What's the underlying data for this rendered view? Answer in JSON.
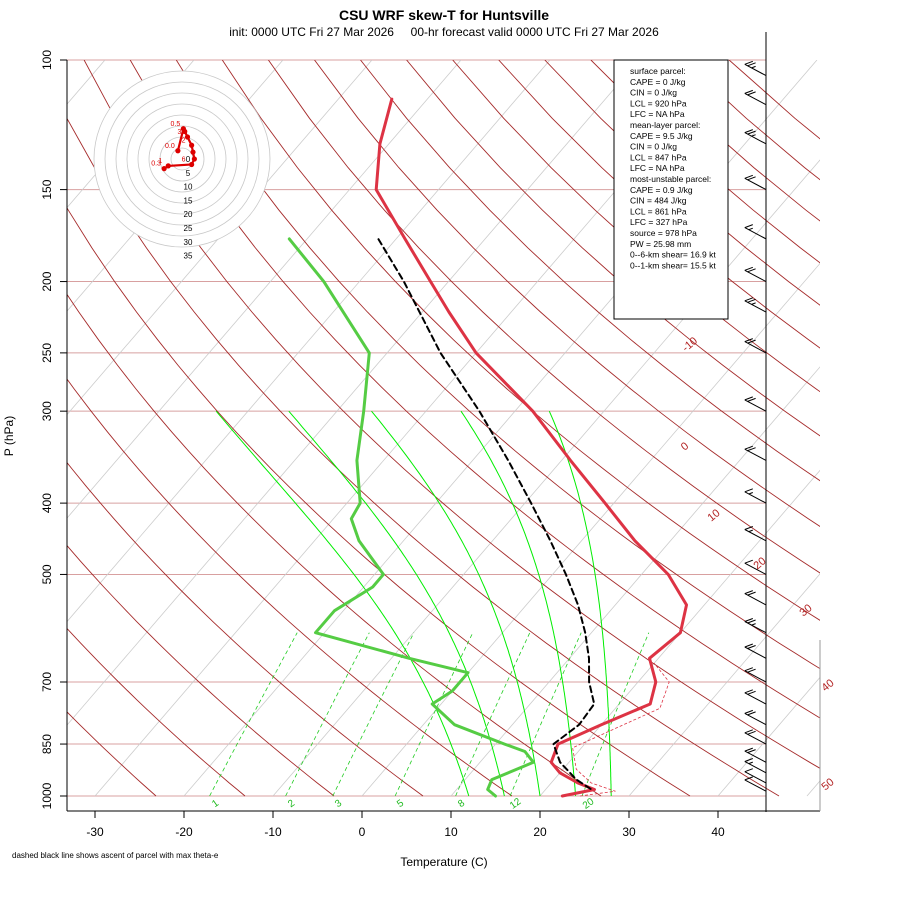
{
  "chart_data": {
    "type": "line",
    "title": "CSU WRF skew-T for Huntsville",
    "subtitle": "init: 0000 UTC Fri 27 Mar 2026     00-hr forecast valid 0000 UTC Fri 27 Mar 2026",
    "xlabel": "Temperature (C)",
    "ylabel": "P (hPa)",
    "x_ticks": [
      -30,
      -20,
      -10,
      0,
      10,
      20,
      30,
      40
    ],
    "y_ticks": [
      100,
      150,
      200,
      250,
      300,
      400,
      500,
      700,
      850,
      1000
    ],
    "ylim": [
      1000,
      100
    ],
    "y_scale": "log",
    "isotherm_labels": [
      "-10",
      "0",
      "10",
      "20",
      "30",
      "40",
      "50"
    ],
    "mixing_ratio_labels": [
      "1",
      "2",
      "3",
      "5",
      "8",
      "12",
      "20"
    ],
    "series": [
      {
        "name": "temperature",
        "color": "#dd3344",
        "points": [
          [
            1000,
            22.5
          ],
          [
            980,
            25.5
          ],
          [
            960,
            23
          ],
          [
            930,
            20
          ],
          [
            900,
            18
          ],
          [
            850,
            17
          ],
          [
            800,
            20
          ],
          [
            750,
            23.5
          ],
          [
            700,
            22
          ],
          [
            650,
            19
          ],
          [
            600,
            20
          ],
          [
            550,
            18
          ],
          [
            500,
            13
          ],
          [
            450,
            6
          ],
          [
            400,
            -1
          ],
          [
            350,
            -9
          ],
          [
            300,
            -18
          ],
          [
            250,
            -30
          ],
          [
            220,
            -37
          ],
          [
            200,
            -42
          ],
          [
            175,
            -49
          ],
          [
            150,
            -57
          ],
          [
            130,
            -61
          ],
          [
            113,
            -64
          ]
        ]
      },
      {
        "name": "dewpoint",
        "color": "#55cc44",
        "points": [
          [
            1000,
            15
          ],
          [
            980,
            13.5
          ],
          [
            950,
            13
          ],
          [
            900,
            16
          ],
          [
            870,
            14
          ],
          [
            850,
            11
          ],
          [
            800,
            3.5
          ],
          [
            750,
            -1
          ],
          [
            720,
            0
          ],
          [
            680,
            0
          ],
          [
            650,
            -8
          ],
          [
            600,
            -21
          ],
          [
            560,
            -21
          ],
          [
            520,
            -19
          ],
          [
            500,
            -19
          ],
          [
            450,
            -25
          ],
          [
            420,
            -28
          ],
          [
            400,
            -28.5
          ],
          [
            350,
            -33
          ],
          [
            300,
            -37
          ],
          [
            250,
            -42
          ],
          [
            200,
            -54
          ],
          [
            175,
            -62
          ]
        ]
      },
      {
        "name": "parcel",
        "color": "#000000",
        "points": [
          [
            978,
            25
          ],
          [
            950,
            22.5
          ],
          [
            900,
            19
          ],
          [
            850,
            16.5
          ],
          [
            800,
            17.5
          ],
          [
            750,
            17.2
          ],
          [
            700,
            14.5
          ],
          [
            650,
            12.2
          ],
          [
            600,
            9.3
          ],
          [
            550,
            5.8
          ],
          [
            500,
            1.5
          ],
          [
            450,
            -3.5
          ],
          [
            400,
            -9.3
          ],
          [
            350,
            -16
          ],
          [
            300,
            -24
          ],
          [
            250,
            -34
          ],
          [
            200,
            -45
          ],
          [
            175,
            -52
          ]
        ]
      }
    ],
    "wind_barbs_kt": [
      {
        "p": 985,
        "spd": 10
      },
      {
        "p": 960,
        "spd": 12
      },
      {
        "p": 930,
        "spd": 15
      },
      {
        "p": 900,
        "spd": 18
      },
      {
        "p": 850,
        "spd": 20
      },
      {
        "p": 800,
        "spd": 22
      },
      {
        "p": 750,
        "spd": 20
      },
      {
        "p": 700,
        "spd": 18
      },
      {
        "p": 650,
        "spd": 22
      },
      {
        "p": 600,
        "spd": 25
      },
      {
        "p": 550,
        "spd": 18
      },
      {
        "p": 500,
        "spd": 12
      },
      {
        "p": 450,
        "spd": 15
      },
      {
        "p": 400,
        "spd": 15
      },
      {
        "p": 350,
        "spd": 18
      },
      {
        "p": 300,
        "spd": 20
      },
      {
        "p": 250,
        "spd": 22
      },
      {
        "p": 220,
        "spd": 25
      },
      {
        "p": 200,
        "spd": 20
      },
      {
        "p": 175,
        "spd": 15
      },
      {
        "p": 150,
        "spd": 20
      },
      {
        "p": 130,
        "spd": 25
      },
      {
        "p": 115,
        "spd": 20
      },
      {
        "p": 105,
        "spd": 25
      }
    ],
    "hodograph": {
      "ring_labels": [
        "0",
        "5",
        "10",
        "15",
        "20",
        "25",
        "30",
        "35"
      ],
      "points": [
        {
          "label": "0.3",
          "u": -6.5,
          "v": -3.5
        },
        {
          "label": "1",
          "u": -5,
          "v": -2.5
        },
        {
          "label": "6",
          "u": 3.5,
          "v": -2
        },
        {
          "label": "",
          "u": 4.5,
          "v": 0
        },
        {
          "label": "",
          "u": 4,
          "v": 2.5
        },
        {
          "label": "2",
          "u": 3.5,
          "v": 5
        },
        {
          "label": "3",
          "u": 2,
          "v": 8
        },
        {
          "label": "",
          "u": 1,
          "v": 10
        },
        {
          "label": "0.5",
          "u": 0.5,
          "v": 11
        },
        {
          "label": "0.0",
          "u": -1.5,
          "v": 3
        }
      ]
    }
  },
  "info_box": {
    "lines": [
      "surface parcel:",
      "CAPE = 0 J/kg",
      "CIN = 0 J/kg",
      "LCL = 920 hPa",
      "LFC = NA hPa",
      "",
      "mean-layer parcel:",
      "CAPE = 9.5 J/kg",
      "CIN = 0 J/kg",
      "LCL = 847 hPa",
      "LFC = NA hPa",
      "",
      "most-unstable parcel:",
      "CAPE = 0.9 J/kg",
      "CIN = 484 J/kg",
      "LCL = 861 hPa",
      "LFC = 327 hPa",
      "source = 978 hPa",
      "",
      "PW =  25.98 mm",
      "",
      "0--6-km shear= 16.9 kt",
      "0--1-km shear= 15.5 kt"
    ]
  },
  "footnote": "dashed black line shows ascent of parcel with max theta-e"
}
